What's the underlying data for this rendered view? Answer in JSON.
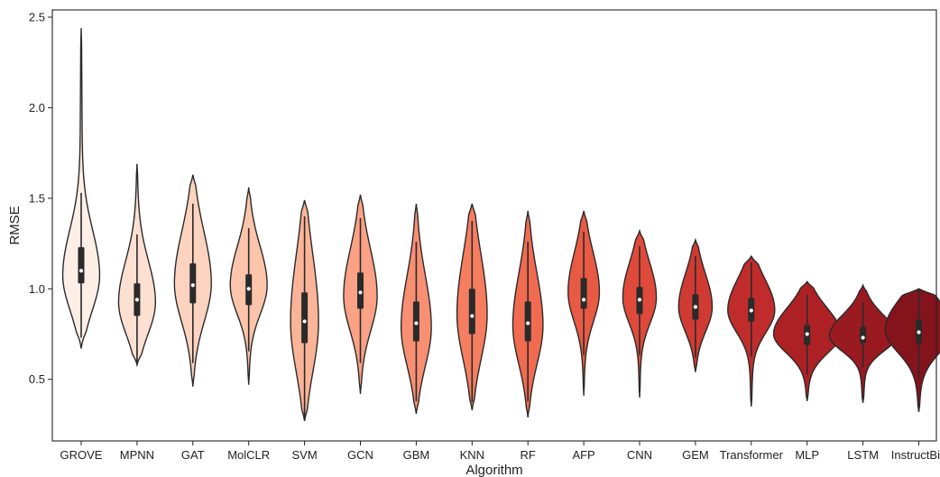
{
  "chart_data": {
    "type": "violin",
    "title": "",
    "xlabel": "Algorithm",
    "ylabel": "RMSE",
    "ylim": [
      0.16,
      2.54
    ],
    "yticks": [
      "0.5",
      "1.0",
      "1.5",
      "2.0",
      "2.5"
    ],
    "ytick_values": [
      0.5,
      1.0,
      1.5,
      2.0,
      2.5
    ],
    "grid": false,
    "legend": "none",
    "categories": [
      "GROVE",
      "MPNN",
      "GAT",
      "MolCLR",
      "SVM",
      "GCN",
      "GBM",
      "KNN",
      "RF",
      "AFP",
      "CNN",
      "GEM",
      "Transformer",
      "MLP",
      "LSTM",
      "InstructBio"
    ],
    "colors": [
      "#fdeee6",
      "#fde0d2",
      "#fcd3bf",
      "#fcc5ab",
      "#fcb499",
      "#fba185",
      "#f88f72",
      "#f67d60",
      "#f06b50",
      "#e95a44",
      "#df4a3b",
      "#cf3b32",
      "#bf2c2b",
      "#ad2125",
      "#991a20",
      "#85131c"
    ],
    "series": [
      {
        "name": "GROVE",
        "min": 0.67,
        "max": 2.44,
        "q1": 1.03,
        "median": 1.1,
        "q3": 1.23,
        "mode": 1.08,
        "max_width": 0.33
      },
      {
        "name": "MPNN",
        "min": 0.58,
        "max": 1.69,
        "q1": 0.85,
        "median": 0.94,
        "q3": 1.03,
        "mode": 0.93,
        "max_width": 0.33
      },
      {
        "name": "GAT",
        "min": 0.46,
        "max": 1.63,
        "q1": 0.92,
        "median": 1.02,
        "q3": 1.14,
        "mode": 1.03,
        "max_width": 0.33
      },
      {
        "name": "MolCLR",
        "min": 0.47,
        "max": 1.56,
        "q1": 0.91,
        "median": 1.0,
        "q3": 1.08,
        "mode": 1.02,
        "max_width": 0.33
      },
      {
        "name": "SVM",
        "min": 0.27,
        "max": 1.49,
        "q1": 0.7,
        "median": 0.82,
        "q3": 0.98,
        "mode": 0.82,
        "max_width": 0.25
      },
      {
        "name": "GCN",
        "min": 0.42,
        "max": 1.52,
        "q1": 0.89,
        "median": 0.98,
        "q3": 1.09,
        "mode": 0.96,
        "max_width": 0.3
      },
      {
        "name": "GBM",
        "min": 0.31,
        "max": 1.47,
        "q1": 0.71,
        "median": 0.81,
        "q3": 0.93,
        "mode": 0.79,
        "max_width": 0.27
      },
      {
        "name": "KNN",
        "min": 0.33,
        "max": 1.47,
        "q1": 0.75,
        "median": 0.85,
        "q3": 1.0,
        "mode": 0.86,
        "max_width": 0.27
      },
      {
        "name": "RF",
        "min": 0.29,
        "max": 1.43,
        "q1": 0.71,
        "median": 0.81,
        "q3": 0.93,
        "mode": 0.8,
        "max_width": 0.27
      },
      {
        "name": "AFP",
        "min": 0.41,
        "max": 1.43,
        "q1": 0.89,
        "median": 0.94,
        "q3": 1.06,
        "mode": 0.98,
        "max_width": 0.28
      },
      {
        "name": "CNN",
        "min": 0.4,
        "max": 1.32,
        "q1": 0.86,
        "median": 0.94,
        "q3": 1.01,
        "mode": 0.95,
        "max_width": 0.3
      },
      {
        "name": "GEM",
        "min": 0.54,
        "max": 1.27,
        "q1": 0.83,
        "median": 0.9,
        "q3": 0.97,
        "mode": 0.9,
        "max_width": 0.3
      },
      {
        "name": "Transformer",
        "min": 0.35,
        "max": 1.18,
        "q1": 0.82,
        "median": 0.88,
        "q3": 0.95,
        "mode": 0.88,
        "max_width": 0.42
      },
      {
        "name": "MLP",
        "min": 0.38,
        "max": 1.04,
        "q1": 0.69,
        "median": 0.75,
        "q3": 0.8,
        "mode": 0.75,
        "max_width": 0.6
      },
      {
        "name": "LSTM",
        "min": 0.37,
        "max": 1.02,
        "q1": 0.7,
        "median": 0.73,
        "q3": 0.79,
        "mode": 0.74,
        "max_width": 0.6
      },
      {
        "name": "InstructBio",
        "min": 0.32,
        "max": 1.0,
        "q1": 0.7,
        "median": 0.76,
        "q3": 0.83,
        "mode": 0.77,
        "max_width": 0.6
      }
    ]
  }
}
